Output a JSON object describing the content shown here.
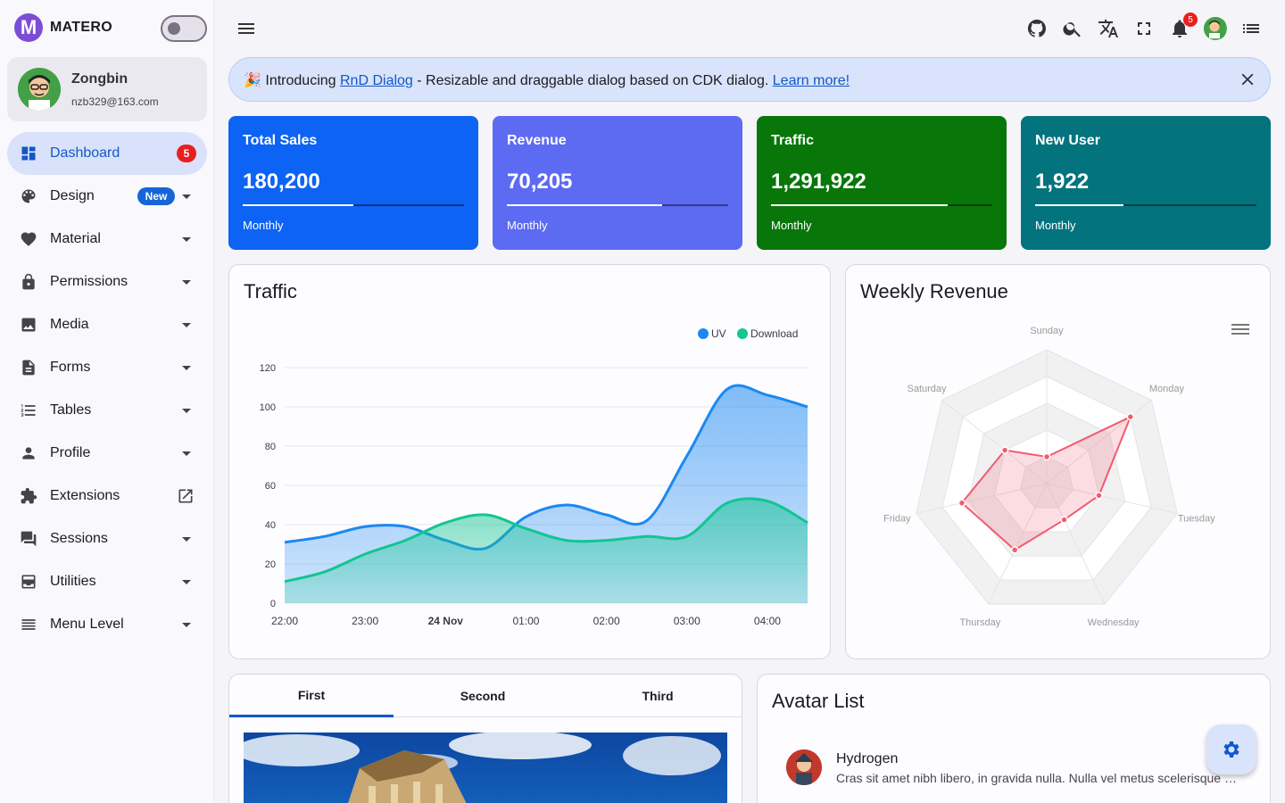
{
  "brand": {
    "name": "MATERO",
    "logo_letter": "M"
  },
  "user": {
    "name": "Zongbin",
    "email": "nzb329@163.com"
  },
  "nav": [
    {
      "label": "Dashboard",
      "icon": "dashboard-icon",
      "badge": "5",
      "active": true
    },
    {
      "label": "Design",
      "icon": "palette-icon",
      "tag": "New"
    },
    {
      "label": "Material",
      "icon": "heart-icon"
    },
    {
      "label": "Permissions",
      "icon": "lock-icon"
    },
    {
      "label": "Media",
      "icon": "image-icon"
    },
    {
      "label": "Forms",
      "icon": "description-icon"
    },
    {
      "label": "Tables",
      "icon": "format-list-numbered-icon"
    },
    {
      "label": "Profile",
      "icon": "person-icon"
    },
    {
      "label": "Extensions",
      "icon": "extension-icon",
      "external": true
    },
    {
      "label": "Sessions",
      "icon": "question-answer-icon"
    },
    {
      "label": "Utilities",
      "icon": "utilities-icon"
    },
    {
      "label": "Menu Level",
      "icon": "list-icon"
    }
  ],
  "header": {
    "notifications": "5"
  },
  "banner": {
    "emoji": "🎉",
    "prefix": "Introducing",
    "link1": "RnD Dialog",
    "middle": "- Resizable and draggable dialog based on CDK dialog.",
    "link2": "Learn more!"
  },
  "stats": [
    {
      "title": "Total Sales",
      "value": "180,200",
      "footer": "Monthly",
      "progress": 0.5,
      "color": "#0d63f3"
    },
    {
      "title": "Revenue",
      "value": "70,205",
      "footer": "Monthly",
      "progress": 0.7,
      "color": "#5d6af2"
    },
    {
      "title": "Traffic",
      "value": "1,291,922",
      "footer": "Monthly",
      "progress": 0.8,
      "color": "#087609"
    },
    {
      "title": "New User",
      "value": "1,922",
      "footer": "Monthly",
      "progress": 0.4,
      "color": "#03737e"
    }
  ],
  "traffic_card": {
    "title": "Traffic"
  },
  "weekly_card": {
    "title": "Weekly Revenue"
  },
  "tabs": [
    "First",
    "Second",
    "Third"
  ],
  "avatar_list": {
    "title": "Avatar List",
    "items": [
      {
        "name": "Hydrogen",
        "description": "Cras sit amet nibh libero, in gravida nulla. Nulla vel metus scelerisque ante sollicitudin commodo."
      }
    ]
  },
  "chart_data": [
    {
      "type": "area",
      "title": "",
      "categories": [
        "22:00",
        "23:00",
        "24 Nov",
        "01:00",
        "02:00",
        "03:00",
        "04:00"
      ],
      "ylim": [
        0,
        120
      ],
      "yticks": [
        "0",
        "20",
        "40",
        "60",
        "80",
        "100",
        "120"
      ],
      "legend": "top-right",
      "series": [
        {
          "name": "UV",
          "color": "#1a88f2",
          "x": [
            0,
            0.5,
            1,
            1.5,
            2,
            2.5,
            3,
            3.5,
            4,
            4.5,
            5,
            5.5,
            6,
            6.5
          ],
          "values": [
            31,
            34,
            39,
            39,
            32,
            28,
            44,
            50,
            45,
            42,
            75,
            109,
            106,
            100
          ]
        },
        {
          "name": "Download",
          "color": "#12c591",
          "x": [
            0,
            0.5,
            1,
            1.5,
            2,
            2.5,
            3,
            3.5,
            4,
            4.5,
            5,
            5.5,
            6,
            6.5
          ],
          "values": [
            11,
            16,
            25,
            32,
            41,
            45,
            38,
            32,
            32,
            34,
            34,
            51,
            52,
            41
          ]
        }
      ]
    },
    {
      "type": "radar",
      "title": "",
      "categories": [
        "Sunday",
        "Monday",
        "Tuesday",
        "Wednesday",
        "Thursday",
        "Friday",
        "Saturday"
      ],
      "max": 100,
      "series": [
        {
          "name": "",
          "color": "#f25b6e",
          "values": [
            20,
            80,
            40,
            30,
            55,
            65,
            40
          ]
        }
      ]
    }
  ]
}
